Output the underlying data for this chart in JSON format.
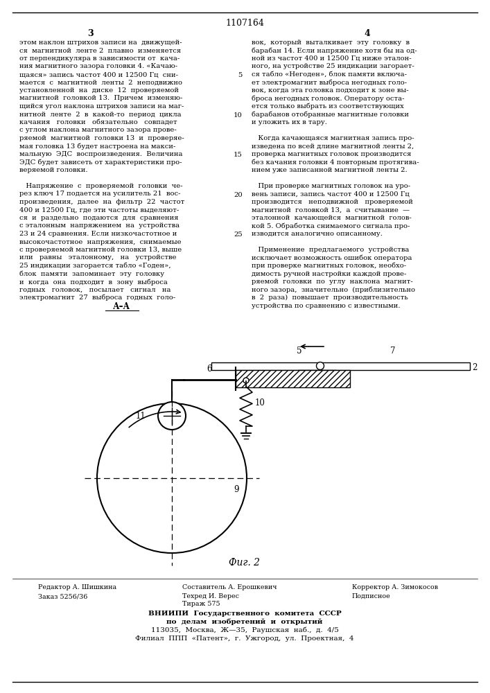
{
  "patent_number": "1107164",
  "page_numbers": [
    "3",
    "4"
  ],
  "col1_text": [
    "этом наклон штрихов записи на  движущей-",
    "ся  магнитной  ленте 2  плавно  изменяется",
    "от перпендикуляра в зависимости от  кача-",
    "ния магнитного зазора головки 4. «Качаю-",
    "щаяся» запись частот 400 и 12500 Гц  сни-",
    "мается  с  магнитной  ленты  2  неподвижно",
    "установленной  на  диске  12  проверяемой",
    "магнитной  головкой 13.  Причем  изменяю-",
    "щийся угол наклона штрихов записи на маг-",
    "нитной  ленте  2  в  какой-то  период  цикла",
    "качания   головки   обязательно   совпадет",
    "с углом наклона магнитного зазора прове-",
    "ряемой  магнитной  головки 13  и  проверяе-",
    "мая головка 13 будет настроена на макси-",
    "мальную  ЭДС  воспроизведения.  Величина",
    "ЭДС будет зависеть от характеристики про-",
    "веряемой головки.",
    "",
    "   Напряжение  с  проверяемой  головки  че-",
    "рез ключ 17 подается на усилитель 21  вос-",
    "произведения,  далее  на  фильтр  22  частот",
    "400 и 12500 Гц, где эти частоты выделяют-",
    "ся  и  раздельно  подаются  для  сравнения",
    "с эталонным  напряжением  на  устройства",
    "23 и 24 сравнения. Если низкочастотное и",
    "высокочастотное  напряжения,  снимаемые",
    "с проверяемой магнитной головки 13, выше",
    "или   равны   эталонному,   на   устройстве",
    "25 индикации загорается табло «Годен»,",
    "блок  памяти  запоминает  эту  головку",
    "и  когда  она  подходит  в  зону  выброса",
    "годных   головок,   посылает   сигнал   на",
    "электромагнит  27  выброса  годных  голо-"
  ],
  "col2_text": [
    "вок,  который  выталкивает  эту  головку  в",
    "барабан 14. Если напряжение хотя бы на од-",
    "ной из частот 400 и 12500 Гц ниже эталон-",
    "ного, на устройстве 25 индикации загорает-",
    "ся табло «Негоден», блок памяти включа-",
    "ет электромагнит выброса негодных голо-",
    "вок, когда эта головка подходит к зоне вы-",
    "броса негодных головок. Оператору оста-",
    "ется только выбрать из соответствующих",
    "барабанов отобранные магнитные головки",
    "и уложить их в тару.",
    "",
    "   Когда качающаяся магнитная запись про-",
    "изведена по всей длине магнитной ленты 2,",
    "проверка магнитных головок производится",
    "без качания головки 4 повторным протягива-",
    "нием уже записанной магнитной ленты 2.",
    "",
    "   При проверке магнитных головок на уро-",
    "вень записи, запись частот 400 и 12500 Гц",
    "производится   неподвижной   проверяемой",
    "магнитной  головкой 13,  а  считывание  —",
    "эталонной  качающейся  магнитной  голов-",
    "кой 5. Обработка снимаемого сигнала про-",
    "изводится аналогично описанному.",
    "",
    "   Применение  предлагаемого  устройства",
    "исключает возможность ошибок оператора",
    "при проверке магнитных головок, необхо-",
    "димость ручной настройки каждой прове-",
    "ряемой  головки  по  углу  наклона  магнит-",
    "ного зазора,  значительно  (приблизительно",
    "в  2  раза)  повышает  производительность",
    "устройства по сравнению с известными."
  ],
  "bg_color": "#ffffff",
  "text_color": "#000000"
}
